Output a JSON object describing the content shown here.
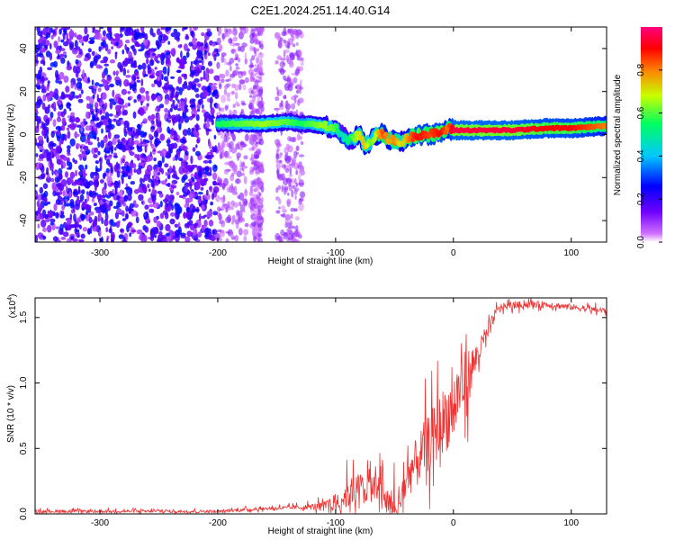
{
  "title": "C2E1.2024.251.14.40.G14",
  "chart_data": [
    {
      "type": "heatmap",
      "name": "spectrogram",
      "xlabel": "Height of straight line (km)",
      "ylabel": "Frequency (Hz)",
      "xlim": [
        -355,
        130
      ],
      "ylim": [
        -50,
        50
      ],
      "xticks": [
        -300,
        -200,
        -100,
        0,
        100
      ],
      "yticks": [
        -40,
        -20,
        0,
        20,
        40
      ],
      "colorbar": {
        "label": "Normalized spectral amplitude",
        "range": [
          0.0,
          1.0
        ],
        "ticks": [
          "0.0",
          "0.2",
          "0.4",
          "0.6",
          "0.8"
        ],
        "colors": [
          "#ffffff",
          "#d070ff",
          "#7000ff",
          "#0000ff",
          "#00c8ff",
          "#00ff60",
          "#c8ff00",
          "#ff8000",
          "#ff0000",
          "#ff0080"
        ]
      },
      "ridge": {
        "x": [
          -200,
          -180,
          -160,
          -140,
          -130,
          -120,
          -110,
          -100,
          -95,
          -90,
          -85,
          -80,
          -75,
          -70,
          -65,
          -60,
          -55,
          -50,
          -45,
          -40,
          -35,
          -30,
          -20,
          -10,
          -5,
          0,
          20,
          50,
          80,
          100,
          130
        ],
        "y": [
          5,
          5,
          5,
          6,
          5,
          5,
          4,
          3,
          0,
          -3,
          -2,
          0,
          -5,
          -3,
          0,
          0,
          -2,
          -3,
          -4,
          -2,
          -1,
          0,
          0,
          1,
          3,
          2,
          2,
          2,
          3,
          3,
          4
        ],
        "amplitude": [
          0.55,
          0.6,
          0.65,
          0.6,
          0.55,
          0.6,
          0.65,
          0.6,
          0.45,
          0.5,
          0.6,
          0.7,
          0.75,
          0.6,
          0.7,
          0.85,
          0.75,
          0.8,
          0.7,
          0.75,
          0.85,
          0.9,
          0.85,
          0.9,
          0.8,
          0.95,
          0.95,
          0.95,
          0.9,
          0.9,
          0.8
        ]
      },
      "noise_region_x": [
        -355,
        -130
      ]
    },
    {
      "type": "line",
      "name": "snr",
      "xlabel": "Height of straight line (km)",
      "ylabel": "SNR (10 * v/v)",
      "scale_label": "(x10^4)",
      "scale_base": "(x10",
      "scale_exp": "4",
      "scale_close": ")",
      "xlim": [
        -355,
        130
      ],
      "ylim": [
        0,
        1.65
      ],
      "xticks": [
        -300,
        -200,
        -100,
        0,
        100
      ],
      "yticks": [
        "0.0",
        "0.5",
        "1.0",
        "1.5"
      ],
      "color": "#ee3333",
      "trend": {
        "x": [
          -355,
          -200,
          -160,
          -130,
          -110,
          -100,
          -90,
          -80,
          -70,
          -60,
          -55,
          -50,
          -45,
          -40,
          -35,
          -30,
          -25,
          -20,
          -15,
          -10,
          -5,
          0,
          5,
          10,
          15,
          20,
          25,
          30,
          35,
          40,
          60,
          80,
          100,
          120,
          130
        ],
        "y": [
          0.02,
          0.02,
          0.04,
          0.05,
          0.06,
          0.09,
          0.15,
          0.2,
          0.22,
          0.12,
          0.06,
          0.05,
          0.1,
          0.25,
          0.35,
          0.4,
          0.5,
          0.55,
          0.62,
          0.7,
          0.75,
          0.8,
          0.95,
          1.0,
          1.1,
          1.2,
          1.3,
          1.4,
          1.52,
          1.58,
          1.6,
          1.6,
          1.58,
          1.56,
          1.55
        ]
      },
      "noise_amplitude": {
        "x": [
          -355,
          -160,
          -130,
          -110,
          -90,
          -60,
          -40,
          -20,
          0,
          10,
          20,
          30,
          40,
          130
        ],
        "y": [
          0.02,
          0.02,
          0.03,
          0.06,
          0.2,
          0.25,
          0.3,
          0.4,
          0.5,
          0.45,
          0.2,
          0.1,
          0.05,
          0.04
        ]
      }
    }
  ]
}
